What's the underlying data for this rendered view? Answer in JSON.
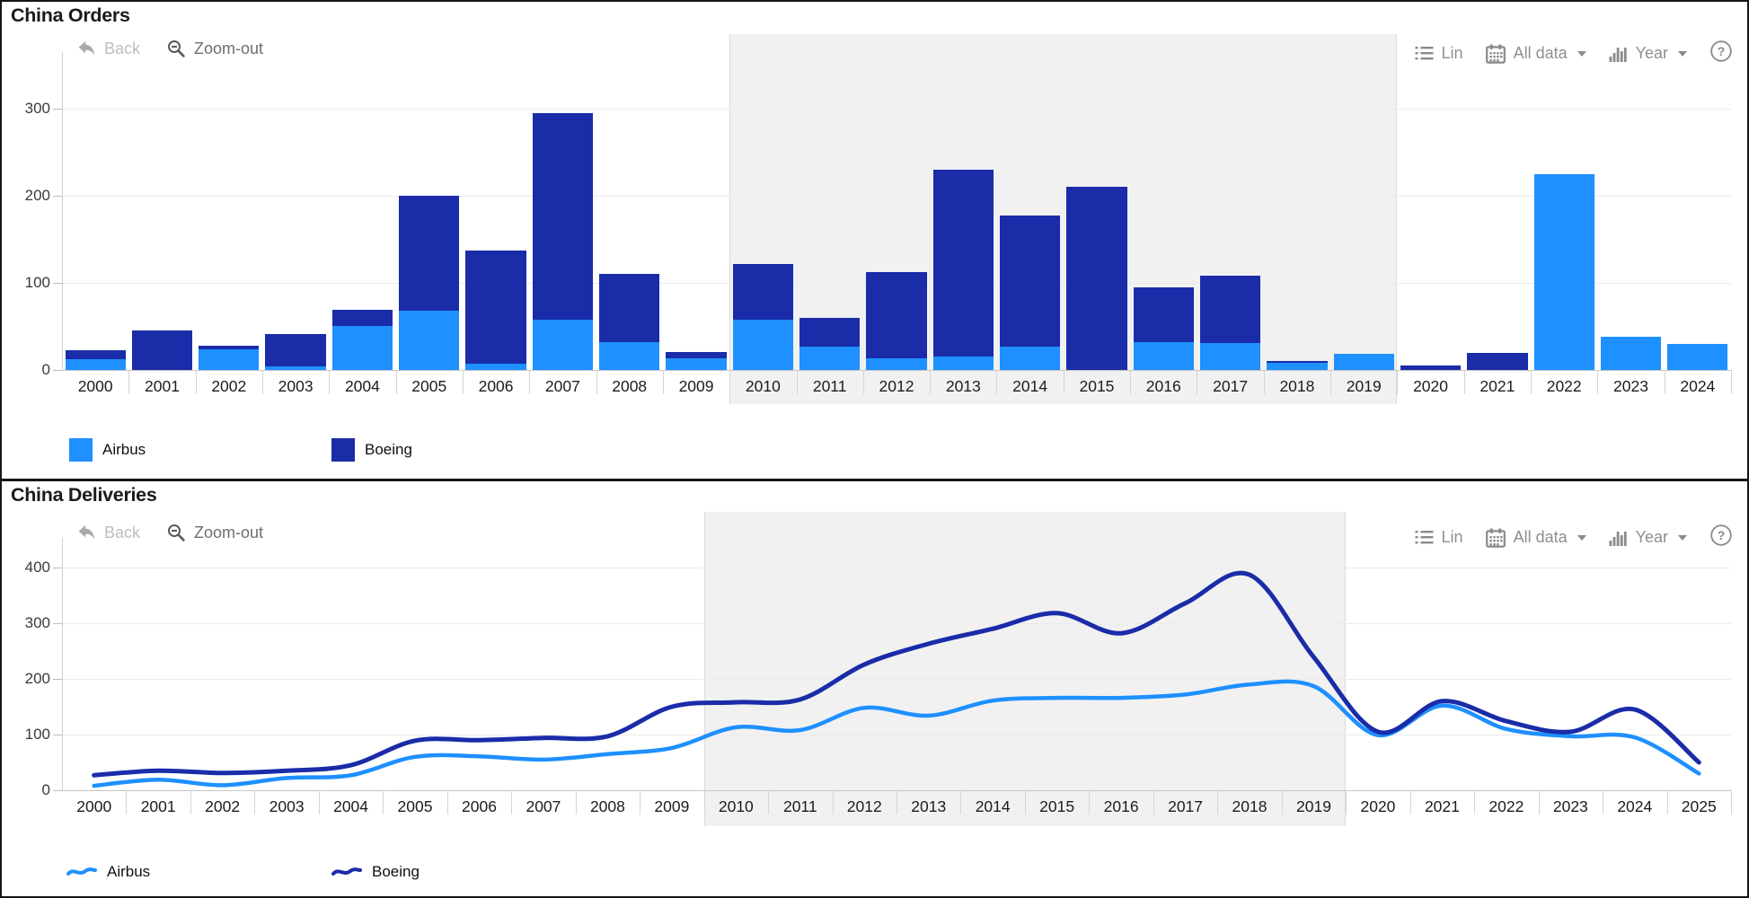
{
  "toolbar": {
    "back": "Back",
    "zoom_out": "Zoom-out",
    "lin": "Lin",
    "all_data": "All data",
    "year": "Year"
  },
  "legend": {
    "airbus": "Airbus",
    "boeing": "Boeing"
  },
  "icons": {
    "help_glyph": "?"
  },
  "colors": {
    "airbus": "#1E90FF",
    "boeing": "#1A2CA8",
    "band": "#F1F1F1",
    "grid": "#EBEBEB",
    "title_text": "#1b1b1b",
    "toolbar_text": "#8f8f8f",
    "toolbar_disabled": "#bdbdbd"
  },
  "chart_data": [
    {
      "type": "bar",
      "stacked": true,
      "title": "China Orders",
      "categories": [
        2000,
        2001,
        2002,
        2003,
        2004,
        2005,
        2006,
        2007,
        2008,
        2009,
        2010,
        2011,
        2012,
        2013,
        2014,
        2015,
        2016,
        2017,
        2018,
        2019,
        2020,
        2021,
        2022,
        2023,
        2024
      ],
      "series": [
        {
          "name": "Airbus",
          "color": "#1E90FF",
          "values": [
            12,
            0,
            24,
            4,
            51,
            68,
            7,
            58,
            32,
            13,
            58,
            27,
            13,
            15,
            27,
            0,
            32,
            31,
            8,
            19,
            0,
            0,
            225,
            38,
            30
          ]
        },
        {
          "name": "Boeing",
          "color": "#1A2CA8",
          "values": [
            11,
            45,
            4,
            37,
            18,
            132,
            130,
            237,
            78,
            8,
            64,
            33,
            99,
            215,
            150,
            210,
            63,
            77,
            2,
            0,
            5,
            20,
            0,
            0,
            0
          ]
        }
      ],
      "ylabel": "",
      "xlabel": "",
      "ylim": [
        0,
        365
      ],
      "yticks": [
        0,
        100,
        200,
        300
      ],
      "grid": true,
      "legend_position": "bottom",
      "highlight_band": {
        "from": 2010,
        "to": 2019
      }
    },
    {
      "type": "line",
      "title": "China Deliveries",
      "categories": [
        2000,
        2001,
        2002,
        2003,
        2004,
        2005,
        2006,
        2007,
        2008,
        2009,
        2010,
        2011,
        2012,
        2013,
        2014,
        2015,
        2016,
        2017,
        2018,
        2019,
        2020,
        2021,
        2022,
        2023,
        2024,
        2025
      ],
      "series": [
        {
          "name": "Airbus",
          "color": "#1E90FF",
          "values": [
            8,
            19,
            9,
            22,
            27,
            60,
            61,
            55,
            65,
            76,
            113,
            108,
            148,
            134,
            161,
            166,
            166,
            172,
            190,
            187,
            99,
            152,
            110,
            97,
            95,
            30
          ]
        },
        {
          "name": "Boeing",
          "color": "#1A2CA8",
          "values": [
            27,
            35,
            31,
            35,
            45,
            89,
            90,
            94,
            97,
            150,
            158,
            163,
            226,
            263,
            290,
            318,
            282,
            336,
            387,
            239,
            105,
            160,
            124,
            105,
            145,
            50
          ]
        }
      ],
      "ylabel": "",
      "xlabel": "",
      "ylim": [
        0,
        435
      ],
      "yticks": [
        0,
        100,
        200,
        300,
        400
      ],
      "grid": true,
      "legend_position": "bottom",
      "highlight_band": {
        "from": 2010,
        "to": 2019
      }
    }
  ]
}
